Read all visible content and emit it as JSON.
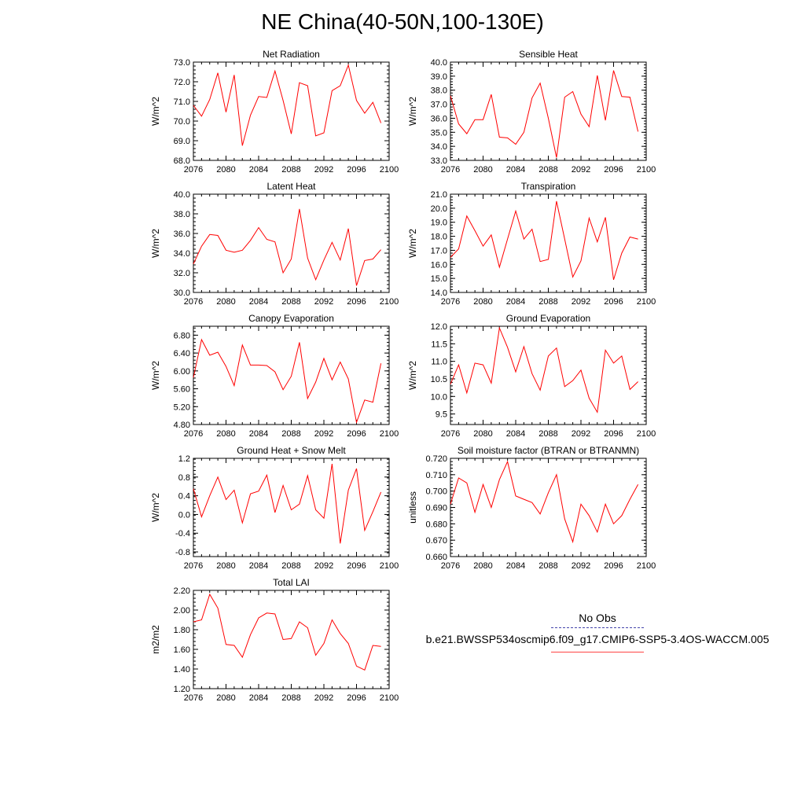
{
  "title": "NE China(40-50N,100-130E)",
  "legend": {
    "obs_label": "No Obs",
    "model_label": "b.e21.BWSSP534oscmip6.f09_g17.CMIP6-SSP5-3.4OS-WACCM.005",
    "model_color": "#ff0000",
    "obs_color": "#4444aa"
  },
  "chart_data": [
    {
      "type": "line",
      "title": "Net Radiation",
      "ylabel": "W/m^2",
      "xlabel": "",
      "x": [
        2076,
        2077,
        2078,
        2079,
        2080,
        2081,
        2082,
        2083,
        2084,
        2085,
        2086,
        2087,
        2088,
        2089,
        2090,
        2091,
        2092,
        2093,
        2094,
        2095,
        2096,
        2097,
        2098,
        2099
      ],
      "values": [
        70.8,
        70.25,
        71.1,
        72.45,
        70.45,
        72.35,
        68.75,
        70.3,
        71.25,
        71.2,
        72.55,
        71.05,
        69.35,
        71.95,
        71.8,
        69.25,
        69.4,
        71.55,
        71.8,
        72.85,
        71.05,
        70.4,
        70.95,
        69.9
      ],
      "xlim": [
        2076,
        2100
      ],
      "ylim": [
        68.0,
        73.0
      ],
      "xticks": [
        "2076",
        "2080",
        "2084",
        "2088",
        "2092",
        "2096",
        "2100"
      ],
      "yticks": [
        "68.0",
        "69.0",
        "70.0",
        "71.0",
        "72.0",
        "73.0"
      ],
      "color": "#ff0000"
    },
    {
      "type": "line",
      "title": "Sensible Heat",
      "ylabel": "W/m^2",
      "xlabel": "",
      "x": [
        2076,
        2077,
        2078,
        2079,
        2080,
        2081,
        2082,
        2083,
        2084,
        2085,
        2086,
        2087,
        2088,
        2089,
        2090,
        2091,
        2092,
        2093,
        2094,
        2095,
        2096,
        2097,
        2098,
        2099
      ],
      "values": [
        37.6,
        35.6,
        34.9,
        35.9,
        35.9,
        37.7,
        34.65,
        34.6,
        34.15,
        35.0,
        37.45,
        38.5,
        36.0,
        33.2,
        37.5,
        37.9,
        36.3,
        35.4,
        39.05,
        35.85,
        39.4,
        37.55,
        37.5,
        35.05
      ],
      "xlim": [
        2076,
        2100
      ],
      "ylim": [
        33.0,
        40.0
      ],
      "xticks": [
        "2076",
        "2080",
        "2084",
        "2088",
        "2092",
        "2096",
        "2100"
      ],
      "yticks": [
        "33.0",
        "34.0",
        "35.0",
        "36.0",
        "37.0",
        "38.0",
        "39.0",
        "40.0"
      ],
      "color": "#ff0000"
    },
    {
      "type": "line",
      "title": "Latent Heat",
      "ylabel": "W/m^2",
      "xlabel": "",
      "x": [
        2076,
        2077,
        2078,
        2079,
        2080,
        2081,
        2082,
        2083,
        2084,
        2085,
        2086,
        2087,
        2088,
        2089,
        2090,
        2091,
        2092,
        2093,
        2094,
        2095,
        2096,
        2097,
        2098,
        2099
      ],
      "values": [
        32.9,
        34.7,
        35.9,
        35.8,
        34.3,
        34.1,
        34.3,
        35.3,
        36.6,
        35.4,
        35.15,
        32.0,
        33.4,
        38.5,
        33.5,
        31.3,
        33.3,
        35.1,
        33.3,
        36.5,
        30.7,
        33.25,
        33.4,
        34.35
      ],
      "xlim": [
        2076,
        2100
      ],
      "ylim": [
        30.0,
        40.0
      ],
      "xticks": [
        "2076",
        "2080",
        "2084",
        "2088",
        "2092",
        "2096",
        "2100"
      ],
      "yticks": [
        "30.0",
        "32.0",
        "34.0",
        "36.0",
        "38.0",
        "40.0"
      ],
      "color": "#ff0000"
    },
    {
      "type": "line",
      "title": "Transpiration",
      "ylabel": "W/m^2",
      "xlabel": "",
      "x": [
        2076,
        2077,
        2078,
        2079,
        2080,
        2081,
        2082,
        2083,
        2084,
        2085,
        2086,
        2087,
        2088,
        2089,
        2090,
        2091,
        2092,
        2093,
        2094,
        2095,
        2096,
        2097,
        2098,
        2099
      ],
      "values": [
        16.5,
        17.1,
        19.45,
        18.4,
        17.3,
        18.1,
        15.8,
        17.8,
        19.8,
        17.8,
        18.5,
        16.2,
        16.35,
        20.5,
        17.8,
        15.1,
        16.25,
        19.3,
        17.6,
        19.35,
        14.9,
        16.8,
        17.95,
        17.8
      ],
      "xlim": [
        2076,
        2100
      ],
      "ylim": [
        14.0,
        21.0
      ],
      "xticks": [
        "2076",
        "2080",
        "2084",
        "2088",
        "2092",
        "2096",
        "2100"
      ],
      "yticks": [
        "14.0",
        "15.0",
        "16.0",
        "17.0",
        "18.0",
        "19.0",
        "20.0",
        "21.0"
      ],
      "color": "#ff0000"
    },
    {
      "type": "line",
      "title": "Canopy Evaporation",
      "ylabel": "W/m^2",
      "xlabel": "",
      "x": [
        2076,
        2077,
        2078,
        2079,
        2080,
        2081,
        2082,
        2083,
        2084,
        2085,
        2086,
        2087,
        2088,
        2089,
        2090,
        2091,
        2092,
        2093,
        2094,
        2095,
        2096,
        2097,
        2098,
        2099
      ],
      "values": [
        5.85,
        6.7,
        6.35,
        6.42,
        6.1,
        5.67,
        6.58,
        6.13,
        6.13,
        6.12,
        5.98,
        5.58,
        5.88,
        6.64,
        5.38,
        5.75,
        6.28,
        5.8,
        6.2,
        5.82,
        4.85,
        5.35,
        5.3,
        6.17
      ],
      "xlim": [
        2076,
        2100
      ],
      "ylim": [
        4.8,
        7.0
      ],
      "xticks": [
        "2076",
        "2080",
        "2084",
        "2088",
        "2092",
        "2096",
        "2100"
      ],
      "yticks": [
        "4.80",
        "5.20",
        "5.60",
        "6.00",
        "6.40",
        "6.80"
      ],
      "color": "#ff0000"
    },
    {
      "type": "line",
      "title": "Ground Evaporation",
      "ylabel": "W/m^2",
      "xlabel": "",
      "x": [
        2076,
        2077,
        2078,
        2079,
        2080,
        2081,
        2082,
        2083,
        2084,
        2085,
        2086,
        2087,
        2088,
        2089,
        2090,
        2091,
        2092,
        2093,
        2094,
        2095,
        2096,
        2097,
        2098,
        2099
      ],
      "values": [
        10.35,
        10.9,
        10.1,
        10.95,
        10.9,
        10.38,
        11.95,
        11.4,
        10.7,
        11.42,
        10.65,
        10.18,
        11.15,
        11.38,
        10.28,
        10.45,
        10.75,
        9.95,
        9.55,
        11.32,
        10.95,
        11.15,
        10.2,
        10.42
      ],
      "xlim": [
        2076,
        2100
      ],
      "ylim": [
        9.2,
        12.0
      ],
      "xticks": [
        "2076",
        "2080",
        "2084",
        "2088",
        "2092",
        "2096",
        "2100"
      ],
      "yticks": [
        "9.5",
        "10.0",
        "10.5",
        "11.0",
        "11.5",
        "12.0"
      ],
      "color": "#ff0000"
    },
    {
      "type": "line",
      "title": "Ground Heat + Snow Melt",
      "ylabel": "W/m^2",
      "xlabel": "",
      "x": [
        2076,
        2077,
        2078,
        2079,
        2080,
        2081,
        2082,
        2083,
        2084,
        2085,
        2086,
        2087,
        2088,
        2089,
        2090,
        2091,
        2092,
        2093,
        2094,
        2095,
        2096,
        2097,
        2098,
        2099
      ],
      "values": [
        0.55,
        -0.05,
        0.4,
        0.8,
        0.32,
        0.52,
        -0.18,
        0.44,
        0.5,
        0.84,
        0.04,
        0.62,
        0.1,
        0.22,
        0.83,
        0.1,
        -0.08,
        1.08,
        -0.62,
        0.52,
        0.98,
        -0.34,
        0.06,
        0.48
      ],
      "xlim": [
        2076,
        2100
      ],
      "ylim": [
        -0.9,
        1.2
      ],
      "xticks": [
        "2076",
        "2080",
        "2084",
        "2088",
        "2092",
        "2096",
        "2100"
      ],
      "yticks": [
        "-0.8",
        "-0.4",
        "0.0",
        "0.4",
        "0.8",
        "1.2"
      ],
      "color": "#ff0000"
    },
    {
      "type": "line",
      "title": "Soil moisture factor (BTRAN or BTRANMN)",
      "ylabel": "unitless",
      "xlabel": "",
      "x": [
        2076,
        2077,
        2078,
        2079,
        2080,
        2081,
        2082,
        2083,
        2084,
        2085,
        2086,
        2087,
        2088,
        2089,
        2090,
        2091,
        2092,
        2093,
        2094,
        2095,
        2096,
        2097,
        2098,
        2099
      ],
      "values": [
        0.692,
        0.708,
        0.705,
        0.687,
        0.704,
        0.69,
        0.707,
        0.718,
        0.697,
        0.695,
        0.693,
        0.686,
        0.699,
        0.71,
        0.683,
        0.669,
        0.692,
        0.685,
        0.675,
        0.692,
        0.68,
        0.685,
        0.695,
        0.704
      ],
      "xlim": [
        2076,
        2100
      ],
      "ylim": [
        0.66,
        0.72
      ],
      "xticks": [
        "2076",
        "2080",
        "2084",
        "2088",
        "2092",
        "2096",
        "2100"
      ],
      "yticks": [
        "0.660",
        "0.670",
        "0.680",
        "0.690",
        "0.700",
        "0.710",
        "0.720"
      ],
      "color": "#ff0000"
    },
    {
      "type": "line",
      "title": "Total LAI",
      "ylabel": "m2/m2",
      "xlabel": "",
      "x": [
        2076,
        2077,
        2078,
        2079,
        2080,
        2081,
        2082,
        2083,
        2084,
        2085,
        2086,
        2087,
        2088,
        2089,
        2090,
        2091,
        2092,
        2093,
        2094,
        2095,
        2096,
        2097,
        2098,
        2099
      ],
      "values": [
        1.88,
        1.9,
        2.16,
        2.02,
        1.65,
        1.64,
        1.52,
        1.75,
        1.92,
        1.97,
        1.96,
        1.7,
        1.71,
        1.88,
        1.82,
        1.54,
        1.66,
        1.9,
        1.76,
        1.66,
        1.43,
        1.39,
        1.64,
        1.63
      ],
      "xlim": [
        2076,
        2100
      ],
      "ylim": [
        1.2,
        2.2
      ],
      "xticks": [
        "2076",
        "2080",
        "2084",
        "2088",
        "2092",
        "2096",
        "2100"
      ],
      "yticks": [
        "1.20",
        "1.40",
        "1.60",
        "1.80",
        "2.00",
        "2.20"
      ],
      "color": "#ff0000"
    }
  ]
}
